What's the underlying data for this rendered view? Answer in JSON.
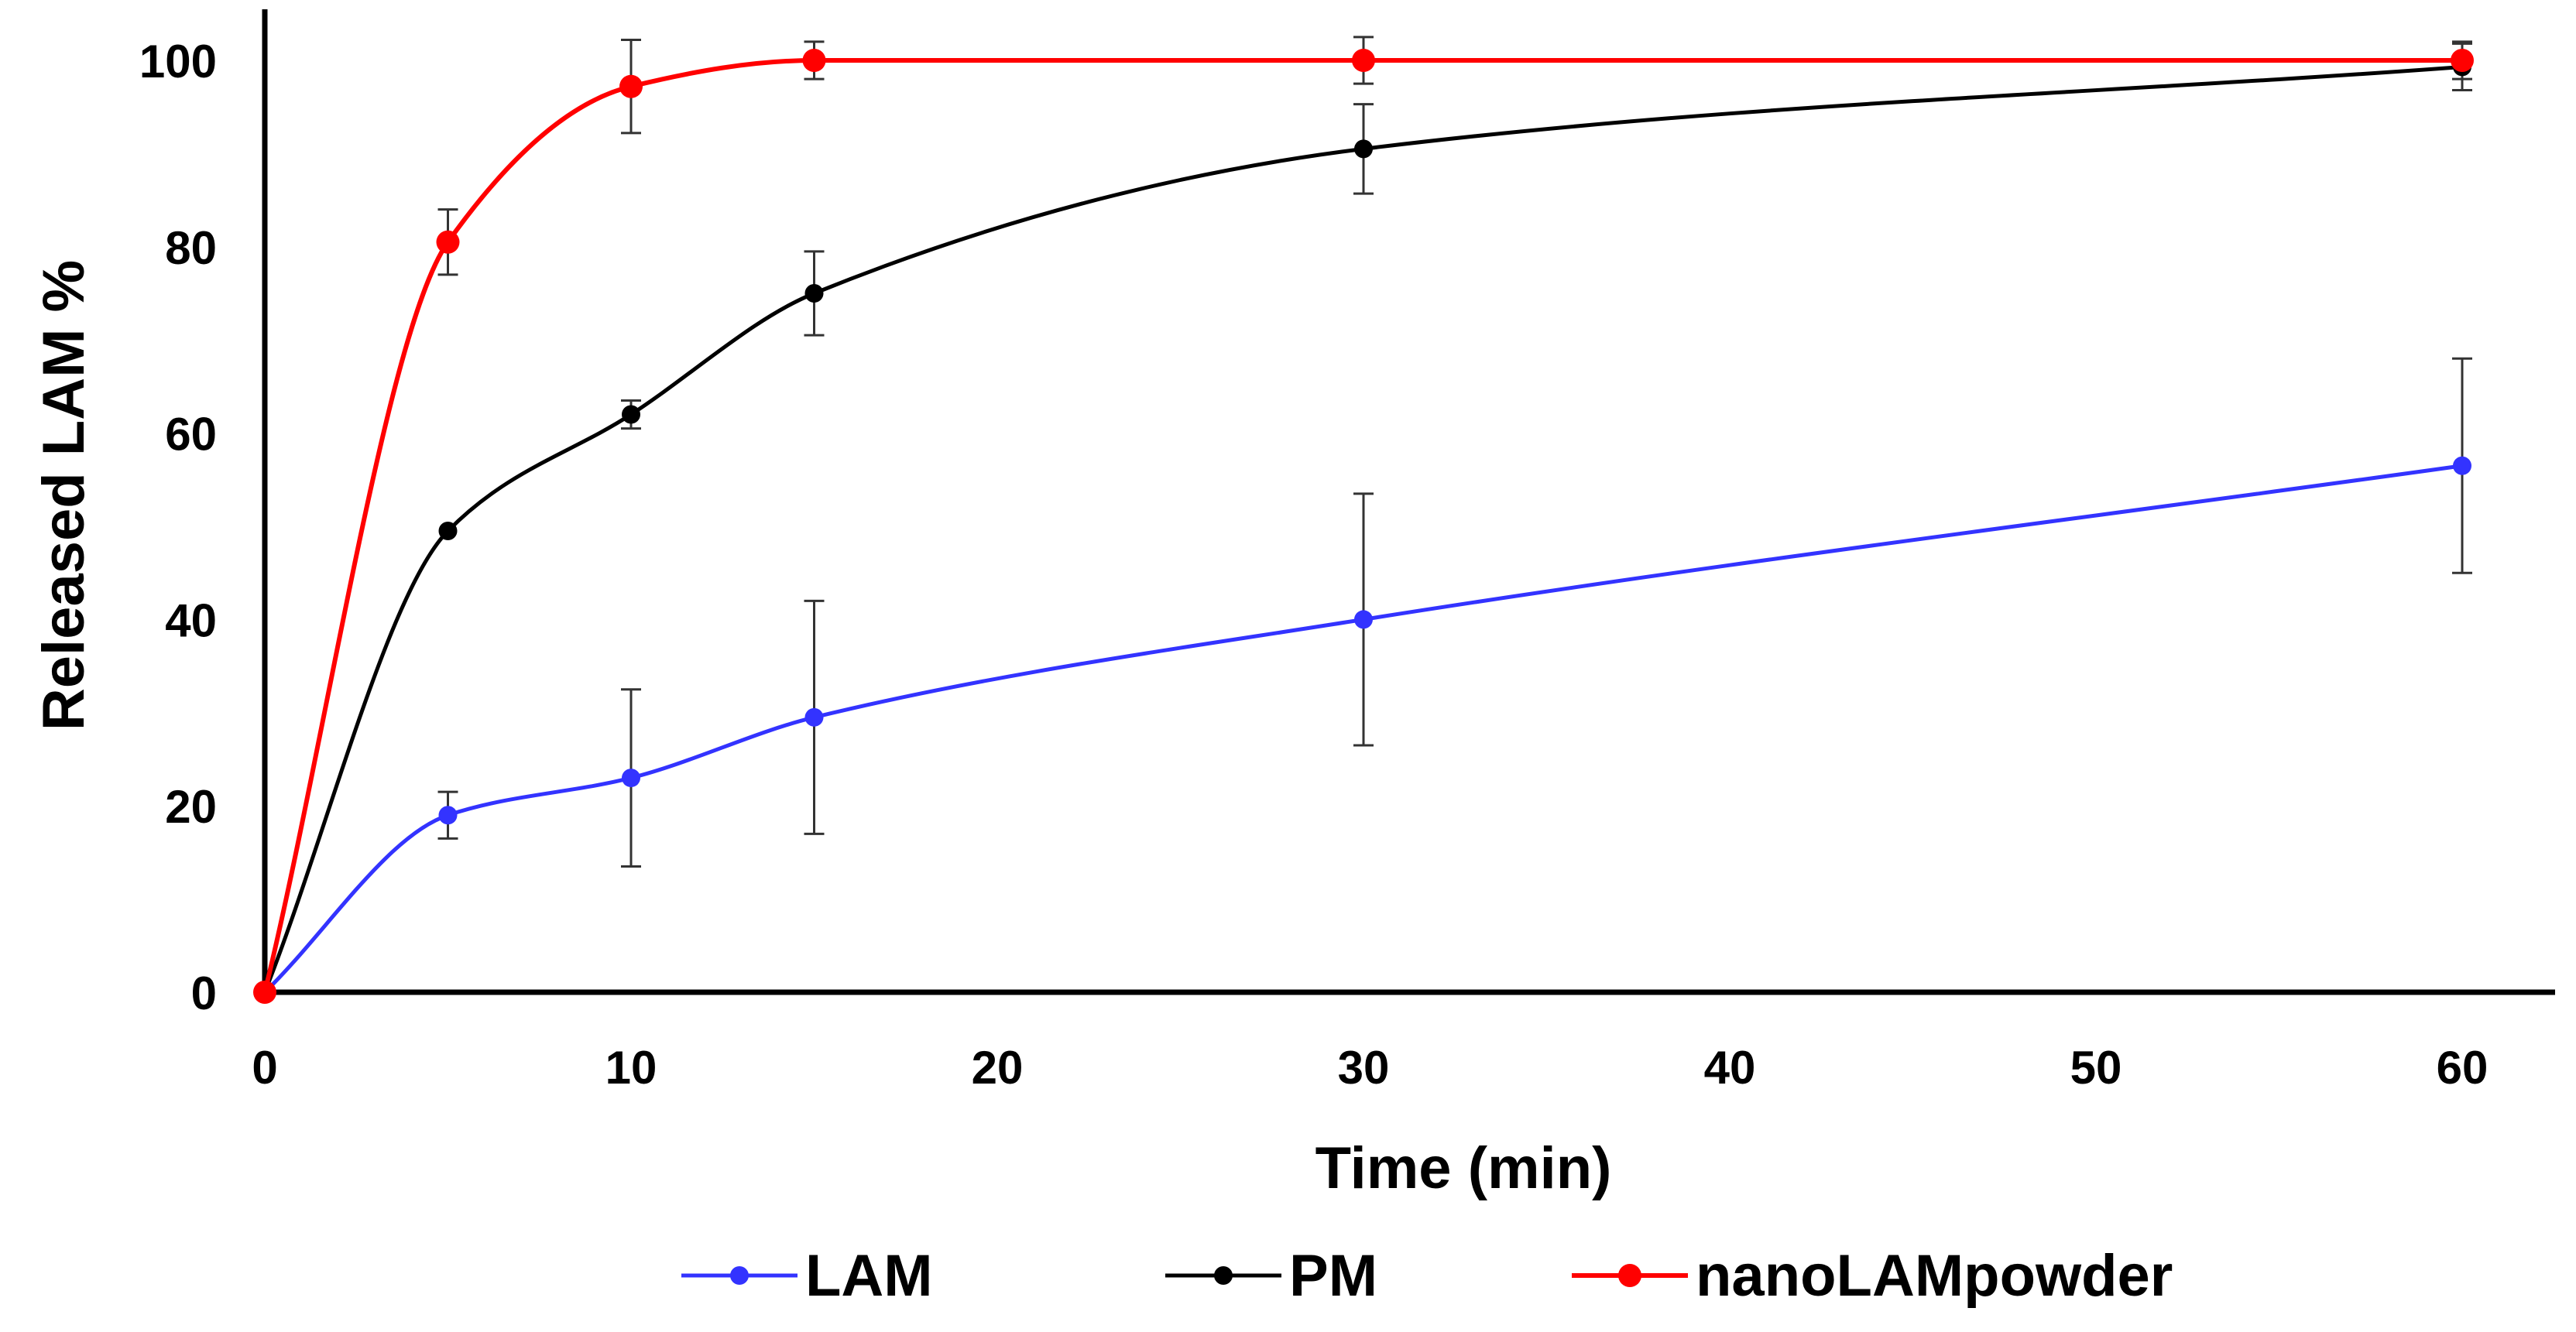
{
  "chart_data": {
    "type": "line",
    "title": "",
    "xlabel": "Time (min)",
    "ylabel": "Released LAM %",
    "xlim": [
      0,
      63
    ],
    "ylim": [
      0,
      105
    ],
    "xticks": [
      0,
      10,
      20,
      30,
      40,
      50,
      60
    ],
    "yticks": [
      0,
      20,
      40,
      60,
      80,
      100
    ],
    "grid": false,
    "legend_position": "bottom",
    "smoothed": true,
    "series": [
      {
        "name": "LAM",
        "color": "#3333ff",
        "x": [
          0,
          5,
          10,
          15,
          30,
          60
        ],
        "y": [
          0,
          19,
          23,
          29.5,
          40,
          56.5
        ],
        "error": [
          0,
          2.5,
          9.5,
          12.5,
          13.5,
          11.5
        ]
      },
      {
        "name": "PM",
        "color": "#000000",
        "x": [
          0,
          5,
          10,
          15,
          30,
          60
        ],
        "y": [
          0,
          49.5,
          62,
          75,
          90.5,
          99.3
        ],
        "error": [
          0,
          0,
          1.5,
          4.5,
          4.8,
          2.5
        ]
      },
      {
        "name": "nanoLAMpowder",
        "color": "#ff0000",
        "x": [
          0,
          5,
          10,
          15,
          30,
          60
        ],
        "y": [
          0,
          80.5,
          97.2,
          100,
          100,
          100
        ],
        "error": [
          0,
          3.5,
          5,
          2,
          2.5,
          2
        ]
      }
    ]
  }
}
